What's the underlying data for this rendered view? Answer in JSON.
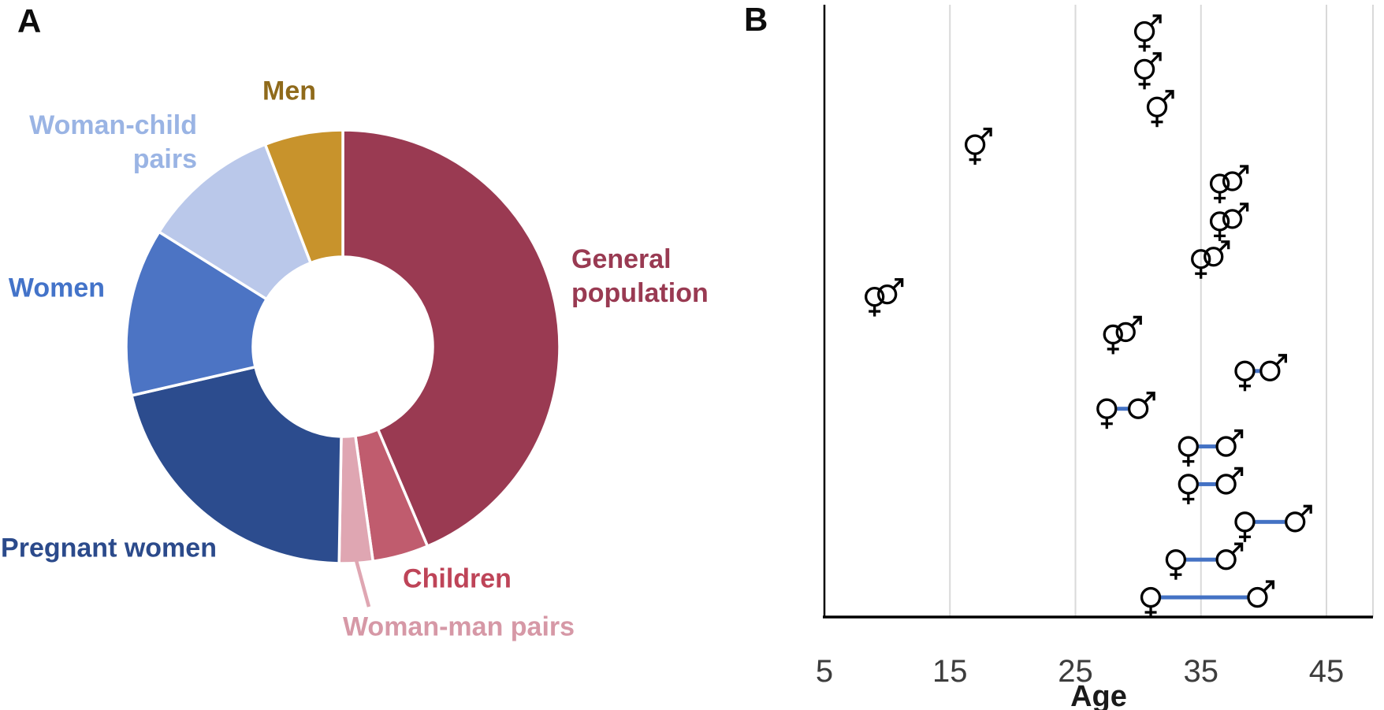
{
  "figure": {
    "panelA_label": "A",
    "panelB_label": "B"
  },
  "panelA": {
    "type": "donut",
    "segments": [
      {
        "id": "general-population",
        "label": "General\npopulation",
        "color": "#9A3A52",
        "text_color": "#993A52",
        "start_deg": 0,
        "end_deg": 157,
        "percent": 43.6
      },
      {
        "id": "children",
        "label": "Children",
        "color": "#C05C6E",
        "text_color": "#BE4458",
        "start_deg": 157,
        "end_deg": 172,
        "percent": 4.2
      },
      {
        "id": "woman-man-pairs",
        "label": "Woman-man pairs",
        "color": "#DFA6B2",
        "text_color": "#D698A6",
        "start_deg": 172,
        "end_deg": 181,
        "percent": 2.5
      },
      {
        "id": "pregnant-women",
        "label": "Pregnant women",
        "color": "#2C4C8E",
        "text_color": "#2B4A8B",
        "start_deg": 181,
        "end_deg": 257,
        "percent": 21.1
      },
      {
        "id": "women",
        "label": "Women",
        "color": "#4C74C4",
        "text_color": "#4373C9",
        "start_deg": 257,
        "end_deg": 302,
        "percent": 12.5
      },
      {
        "id": "woman-child-pairs",
        "label": "Woman-child\npairs",
        "color": "#BAC8EA",
        "text_color": "#9AB4E4",
        "start_deg": 302,
        "end_deg": 339,
        "percent": 10.3
      },
      {
        "id": "men",
        "label": "Men",
        "color": "#C8932C",
        "text_color": "#8F6A1B",
        "start_deg": 339,
        "end_deg": 360,
        "percent": 5.8
      }
    ]
  },
  "panelB": {
    "type": "scatter",
    "xlabel": "Age",
    "x_ticks": [
      5,
      15,
      25,
      35,
      45
    ],
    "symbol_color": "#000000",
    "link_color": "#4472C4",
    "grid_color": "#D9D9D9",
    "axis_color": "#000000",
    "rows": [
      {
        "row": 1,
        "marker": "combined-male-female",
        "age": 30.5
      },
      {
        "row": 2,
        "marker": "combined-male-female",
        "age": 30.5
      },
      {
        "row": 3,
        "marker": "combined-male-female",
        "age": 31.5
      },
      {
        "row": 4,
        "marker": "combined-male-female",
        "age": 17
      },
      {
        "row": 5,
        "marker": "interlocked-couple",
        "age": 37
      },
      {
        "row": 6,
        "marker": "interlocked-couple",
        "age": 37
      },
      {
        "row": 7,
        "marker": "interlocked-couple",
        "age": 35.5
      },
      {
        "row": 8,
        "marker": "interlocked-couple",
        "age": 9.5
      },
      {
        "row": 9,
        "marker": "interlocked-couple",
        "age": 28.5
      },
      {
        "row": 10,
        "marker": "female-male-pair",
        "female_age": 38.5,
        "male_age": 40.5
      },
      {
        "row": 11,
        "marker": "female-male-pair",
        "female_age": 27.5,
        "male_age": 30
      },
      {
        "row": 12,
        "marker": "female-male-pair",
        "female_age": 34,
        "male_age": 37
      },
      {
        "row": 13,
        "marker": "female-male-pair",
        "female_age": 34,
        "male_age": 37
      },
      {
        "row": 14,
        "marker": "female-male-pair",
        "female_age": 38.5,
        "male_age": 42.5
      },
      {
        "row": 15,
        "marker": "female-male-pair",
        "female_age": 33,
        "male_age": 37
      },
      {
        "row": 16,
        "marker": "female-male-pair",
        "female_age": 31,
        "male_age": 39.5
      }
    ]
  },
  "chart_data": [
    {
      "type": "pie",
      "donut": true,
      "title": "Panel A: study population composition",
      "labels": [
        "General population",
        "Children",
        "Woman-man pairs",
        "Pregnant women",
        "Women",
        "Woman-child pairs",
        "Men"
      ],
      "values": [
        43.6,
        4.2,
        2.5,
        21.1,
        12.5,
        10.3,
        5.8
      ],
      "colors": [
        "#9A3A52",
        "#C05C6E",
        "#DFA6B2",
        "#2C4C8E",
        "#4C74C4",
        "#BAC8EA",
        "#C8932C"
      ],
      "start_angle_deg": 0,
      "direction": "clockwise",
      "legend_position": "outside-callouts"
    },
    {
      "type": "scatter",
      "title": "Panel B: ages of participants",
      "xlabel": "Age",
      "xlim": [
        5,
        49
      ],
      "x_ticks": [
        5,
        15,
        25,
        35,
        45
      ],
      "grid": true,
      "y_meaning": "one case per row, top to bottom",
      "rows": [
        {
          "row": 1,
          "marker": "combined-male-female",
          "age": 30.5
        },
        {
          "row": 2,
          "marker": "combined-male-female",
          "age": 30.5
        },
        {
          "row": 3,
          "marker": "combined-male-female",
          "age": 31.5
        },
        {
          "row": 4,
          "marker": "combined-male-female",
          "age": 17
        },
        {
          "row": 5,
          "marker": "interlocked-couple",
          "age": 37
        },
        {
          "row": 6,
          "marker": "interlocked-couple",
          "age": 37
        },
        {
          "row": 7,
          "marker": "interlocked-couple",
          "age": 35.5
        },
        {
          "row": 8,
          "marker": "interlocked-couple",
          "age": 9.5
        },
        {
          "row": 9,
          "marker": "interlocked-couple",
          "age": 28.5
        },
        {
          "row": 10,
          "marker": "female-male-pair",
          "female_age": 38.5,
          "male_age": 40.5
        },
        {
          "row": 11,
          "marker": "female-male-pair",
          "female_age": 27.5,
          "male_age": 30
        },
        {
          "row": 12,
          "marker": "female-male-pair",
          "female_age": 34,
          "male_age": 37
        },
        {
          "row": 13,
          "marker": "female-male-pair",
          "female_age": 34,
          "male_age": 37
        },
        {
          "row": 14,
          "marker": "female-male-pair",
          "female_age": 38.5,
          "male_age": 42.5
        },
        {
          "row": 15,
          "marker": "female-male-pair",
          "female_age": 33,
          "male_age": 37
        },
        {
          "row": 16,
          "marker": "female-male-pair",
          "female_age": 31,
          "male_age": 39.5
        }
      ]
    }
  ]
}
